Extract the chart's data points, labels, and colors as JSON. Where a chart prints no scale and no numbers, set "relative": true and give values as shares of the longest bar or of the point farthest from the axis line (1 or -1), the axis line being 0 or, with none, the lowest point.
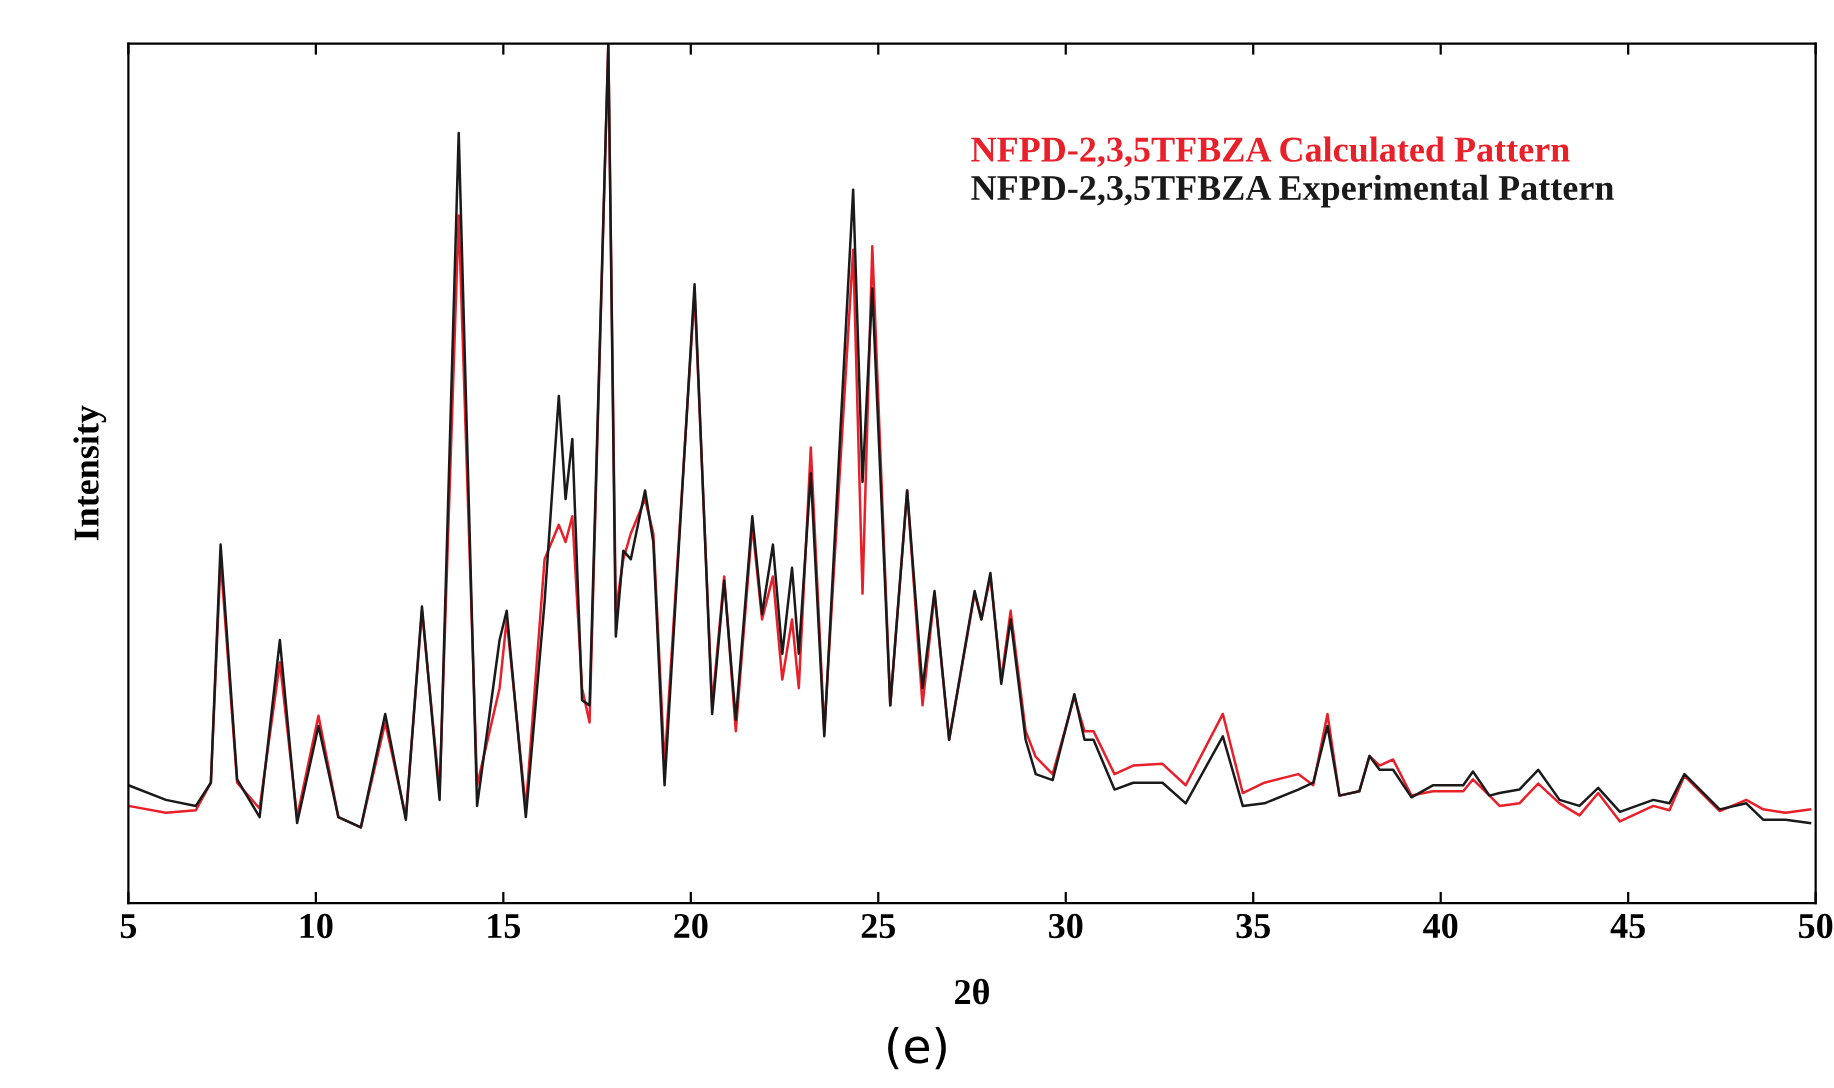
{
  "chart_data": {
    "type": "line",
    "relative": true,
    "xlabel": "2θ",
    "ylabel": "Intensity",
    "annotations": [
      "(e)"
    ],
    "x": [
      5.0,
      6.0,
      6.8,
      7.2,
      7.46,
      7.9,
      8.5,
      9.04,
      9.5,
      10.07,
      10.6,
      11.2,
      11.85,
      12.4,
      12.83,
      13.3,
      13.81,
      14.3,
      14.9,
      15.09,
      15.6,
      16.1,
      16.48,
      16.66,
      16.84,
      17.1,
      17.3,
      17.8,
      18.0,
      18.2,
      18.4,
      18.78,
      19.0,
      19.3,
      20.1,
      20.57,
      20.89,
      21.2,
      21.64,
      21.9,
      22.19,
      22.44,
      22.7,
      22.88,
      23.2,
      23.56,
      24.33,
      24.58,
      24.84,
      25.32,
      25.77,
      26.18,
      26.5,
      26.89,
      27.57,
      27.75,
      27.99,
      28.28,
      28.53,
      28.93,
      29.2,
      29.65,
      30.23,
      30.5,
      30.74,
      31.3,
      31.8,
      32.58,
      33.2,
      34.19,
      34.72,
      35.3,
      36.2,
      36.6,
      36.98,
      37.3,
      37.83,
      38.1,
      38.37,
      38.73,
      39.22,
      39.79,
      40.6,
      40.86,
      41.3,
      41.57,
      42.1,
      42.6,
      43.17,
      43.7,
      44.2,
      44.78,
      45.67,
      46.1,
      46.5,
      47.44,
      48.15,
      48.6,
      49.2,
      49.85
    ],
    "xlim": [
      5,
      50
    ],
    "xticks": [
      5,
      10,
      15,
      20,
      25,
      30,
      35,
      40,
      45,
      50
    ],
    "grid": false,
    "legend": "top right",
    "line_style": "solid",
    "marker": "none",
    "series": [
      {
        "name": "NFPD-2,3,5TFBZA Calculated Pattern",
        "color": "#e8202a",
        "values": [
          0.113,
          0.105,
          0.108,
          0.14,
          0.4,
          0.14,
          0.11,
          0.28,
          0.1,
          0.218,
          0.1,
          0.088,
          0.21,
          0.1,
          0.34,
          0.13,
          0.8,
          0.137,
          0.25,
          0.33,
          0.11,
          0.4,
          0.44,
          0.42,
          0.45,
          0.25,
          0.21,
          1.0,
          0.34,
          0.4,
          0.43,
          0.47,
          0.43,
          0.16,
          0.71,
          0.23,
          0.38,
          0.2,
          0.44,
          0.33,
          0.38,
          0.26,
          0.33,
          0.25,
          0.53,
          0.2,
          0.76,
          0.36,
          0.764,
          0.23,
          0.48,
          0.23,
          0.36,
          0.19,
          0.36,
          0.33,
          0.38,
          0.26,
          0.34,
          0.2,
          0.17,
          0.15,
          0.24,
          0.2,
          0.2,
          0.15,
          0.16,
          0.162,
          0.137,
          0.22,
          0.128,
          0.14,
          0.15,
          0.137,
          0.22,
          0.125,
          0.13,
          0.171,
          0.16,
          0.167,
          0.125,
          0.13,
          0.13,
          0.144,
          0.125,
          0.113,
          0.116,
          0.139,
          0.116,
          0.102,
          0.128,
          0.095,
          0.113,
          0.108,
          0.148,
          0.107,
          0.12,
          0.109,
          0.105,
          0.109
        ]
      },
      {
        "name": "NFPD-2,3,5TFBZA Experimental Pattern",
        "color": "#1a1a1a",
        "values": [
          0.137,
          0.12,
          0.113,
          0.14,
          0.417,
          0.144,
          0.1,
          0.306,
          0.093,
          0.206,
          0.1,
          0.088,
          0.22,
          0.097,
          0.345,
          0.12,
          0.896,
          0.113,
          0.306,
          0.34,
          0.1,
          0.35,
          0.59,
          0.47,
          0.54,
          0.236,
          0.23,
          1.0,
          0.31,
          0.41,
          0.4,
          0.48,
          0.42,
          0.137,
          0.72,
          0.22,
          0.375,
          0.213,
          0.45,
          0.336,
          0.417,
          0.29,
          0.39,
          0.29,
          0.5,
          0.194,
          0.83,
          0.49,
          0.715,
          0.23,
          0.48,
          0.25,
          0.363,
          0.19,
          0.363,
          0.33,
          0.384,
          0.255,
          0.33,
          0.19,
          0.15,
          0.143,
          0.243,
          0.19,
          0.19,
          0.132,
          0.14,
          0.14,
          0.116,
          0.194,
          0.113,
          0.116,
          0.132,
          0.14,
          0.206,
          0.125,
          0.13,
          0.171,
          0.155,
          0.155,
          0.123,
          0.137,
          0.137,
          0.153,
          0.125,
          0.128,
          0.132,
          0.155,
          0.12,
          0.113,
          0.134,
          0.106,
          0.12,
          0.116,
          0.15,
          0.109,
          0.116,
          0.097,
          0.097,
          0.093
        ]
      }
    ]
  }
}
